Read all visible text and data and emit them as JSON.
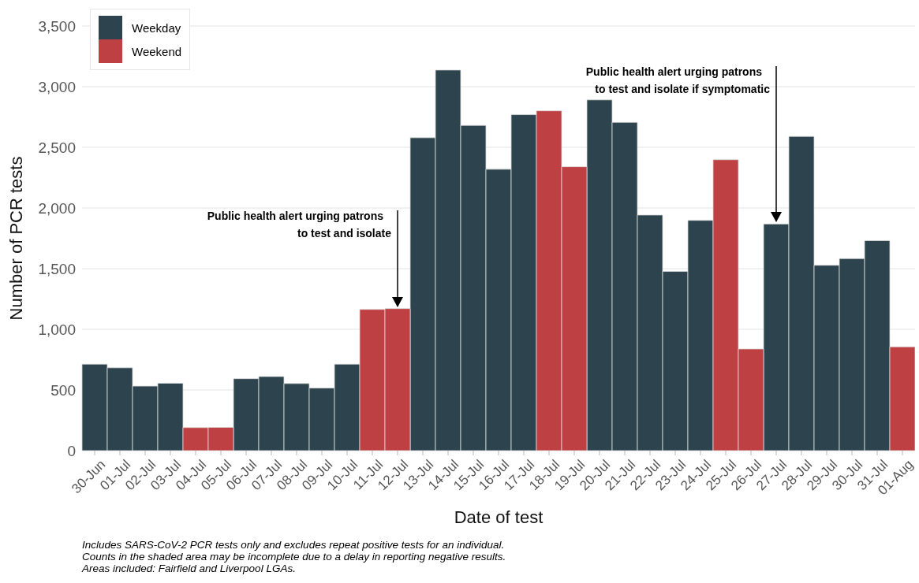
{
  "chart_data": {
    "type": "bar",
    "stacked": true,
    "xlabel": "Date of test",
    "ylabel": "Number of PCR tests",
    "categories": [
      "30-Jun",
      "01-Jul",
      "02-Jul",
      "03-Jul",
      "04-Jul",
      "05-Jul",
      "06-Jul",
      "07-Jul",
      "08-Jul",
      "09-Jul",
      "10-Jul",
      "11-Jul",
      "12-Jul",
      "13-Jul",
      "14-Jul",
      "15-Jul",
      "16-Jul",
      "17-Jul",
      "18-Jul",
      "19-Jul",
      "20-Jul",
      "21-Jul",
      "22-Jul",
      "23-Jul",
      "24-Jul",
      "25-Jul",
      "26-Jul",
      "27-Jul",
      "28-Jul",
      "29-Jul",
      "30-Jul",
      "31-Jul",
      "01-Aug"
    ],
    "series": [
      {
        "name": "Weekday",
        "color": "#2d434e",
        "values": [
          713,
          683,
          532,
          556,
          null,
          null,
          593,
          611,
          553,
          516,
          713,
          null,
          null,
          2579,
          3137,
          2681,
          2319,
          2769,
          null,
          null,
          2891,
          2706,
          1942,
          1477,
          1898,
          null,
          null,
          1868,
          2590,
          1528,
          1583,
          1731,
          null
        ]
      },
      {
        "name": "Weekend",
        "color": "#bf4042",
        "values": [
          null,
          null,
          null,
          null,
          190,
          192,
          null,
          null,
          null,
          null,
          null,
          1164,
          1171,
          null,
          null,
          null,
          null,
          null,
          2801,
          2340,
          null,
          null,
          null,
          null,
          null,
          2398,
          838,
          null,
          null,
          null,
          null,
          null,
          856
        ]
      }
    ],
    "ylim": [
      0,
      3500
    ],
    "yticks": [
      0,
      500,
      {
        "value": 1000,
        "label": "1,000"
      },
      {
        "value": 1500,
        "label": "1,500"
      },
      {
        "value": 2000,
        "label": "2,000"
      },
      {
        "value": 2500,
        "label": "2,500"
      },
      {
        "value": 3000,
        "label": "3,000"
      },
      {
        "value": 3500,
        "label": "3,500"
      }
    ],
    "grid": "y",
    "legend": "top left",
    "annotations": [
      "Public health alert urging patrons\nto test and isolate",
      "Public health alert urging patrons\nto test and isolate if symptomatic",
      "Includes SARS-CoV-2 PCR tests only and excludes repeat positive tests for an individual.",
      "Counts in the shaded area may be incomplete due to a delay in reporting negative results.",
      "Areas included: Fairfield and Liverpool LGAs."
    ]
  }
}
